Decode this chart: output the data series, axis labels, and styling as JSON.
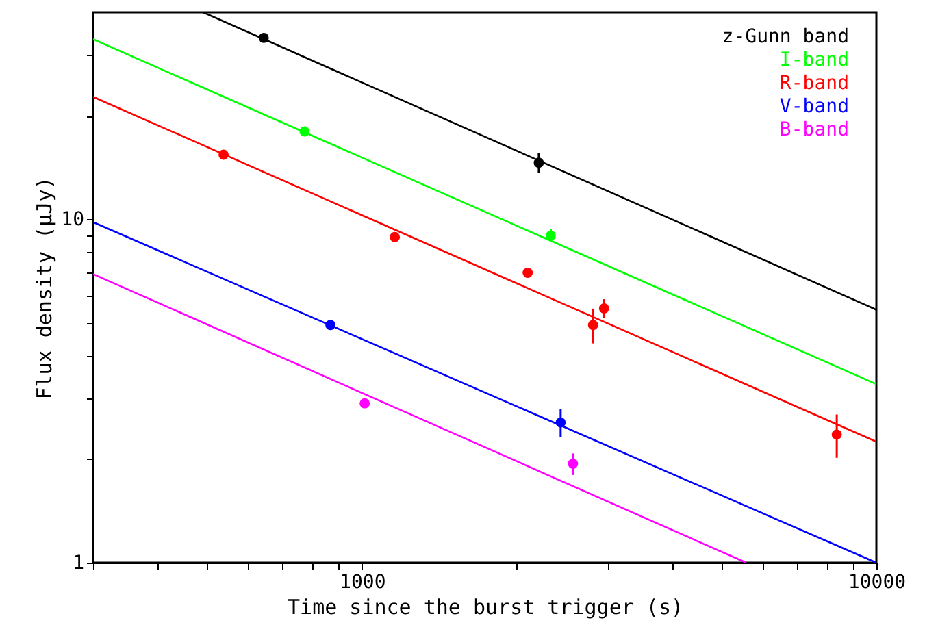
{
  "chart_data": {
    "type": "scatter",
    "xlabel": "Time since the burst trigger (s)",
    "ylabel": "Flux density (μJy)",
    "log": "xy",
    "legend": "top right",
    "grid": false,
    "xlim": [
      300,
      10000
    ],
    "ylim": [
      1,
      40
    ],
    "xticks": [
      {
        "value": 300,
        "label": null
      },
      {
        "value": 400,
        "label": null
      },
      {
        "value": 500,
        "label": null
      },
      {
        "value": 600,
        "label": null
      },
      {
        "value": 700,
        "label": null
      },
      {
        "value": 800,
        "label": null
      },
      {
        "value": 900,
        "label": null
      },
      1000,
      {
        "value": 2000,
        "label": null
      },
      {
        "value": 3000,
        "label": null
      },
      {
        "value": 4000,
        "label": null
      },
      {
        "value": 5000,
        "label": null
      },
      {
        "value": 6000,
        "label": null
      },
      {
        "value": 7000,
        "label": null
      },
      {
        "value": 8000,
        "label": null
      },
      {
        "value": 9000,
        "label": null
      },
      10000
    ],
    "yticks": [
      1,
      {
        "value": 2,
        "label": null
      },
      {
        "value": 3,
        "label": null
      },
      {
        "value": 4,
        "label": null
      },
      {
        "value": 5,
        "label": null
      },
      {
        "value": 6,
        "label": null
      },
      {
        "value": 7,
        "label": null
      },
      {
        "value": 8,
        "label": null
      },
      {
        "value": 9,
        "label": null
      },
      10,
      {
        "value": 20,
        "label": null
      },
      {
        "value": 30,
        "label": null
      }
    ],
    "series": [
      {
        "name": "z-Gunn band",
        "marker": "circle",
        "color": "#000000",
        "x": [
          644,
          2206
        ],
        "values": [
          33.7,
          14.6
        ],
        "errors": [
          null,
          0.95
        ]
      },
      {
        "name": "I-band",
        "marker": "circle",
        "color": "#00ff00",
        "x": [
          773,
          2328
        ],
        "values": [
          18.0,
          8.96
        ],
        "errors": [
          null,
          0.4
        ]
      },
      {
        "name": "R-band",
        "marker": "circle",
        "color": "#ff0000",
        "x": [
          538,
          1158,
          2099,
          2813,
          2955,
          8375
        ],
        "values": [
          15.4,
          8.87,
          6.98,
          4.92,
          5.5,
          2.36
        ],
        "errors": [
          null,
          null,
          null,
          0.57,
          0.35,
          0.34
        ]
      },
      {
        "name": "V-band",
        "marker": "circle",
        "color": "#0000ff",
        "x": [
          868,
          2433
        ],
        "values": [
          4.92,
          2.56
        ],
        "errors": [
          null,
          0.24
        ]
      },
      {
        "name": "B-band",
        "marker": "circle",
        "color": "#ff00ff",
        "x": [
          1012,
          2571
        ],
        "values": [
          2.91,
          1.94
        ],
        "errors": [
          null,
          0.14
        ]
      },
      {
        "type": "line",
        "color": "#000000",
        "x": [
          491,
          10000
        ],
        "values": [
          40,
          5.45
        ]
      },
      {
        "type": "line",
        "color": "#00ff00",
        "x": [
          300,
          10000
        ],
        "values": [
          33.4,
          3.31
        ]
      },
      {
        "type": "line",
        "color": "#ff0000",
        "x": [
          300,
          10000
        ],
        "values": [
          22.7,
          2.25
        ]
      },
      {
        "type": "line",
        "color": "#0000ff",
        "x": [
          300,
          10000
        ],
        "values": [
          9.8,
          1.0
        ]
      },
      {
        "type": "line",
        "color": "#ff00ff",
        "x": [
          300,
          5585
        ],
        "values": [
          6.92,
          1.0
        ]
      }
    ]
  }
}
